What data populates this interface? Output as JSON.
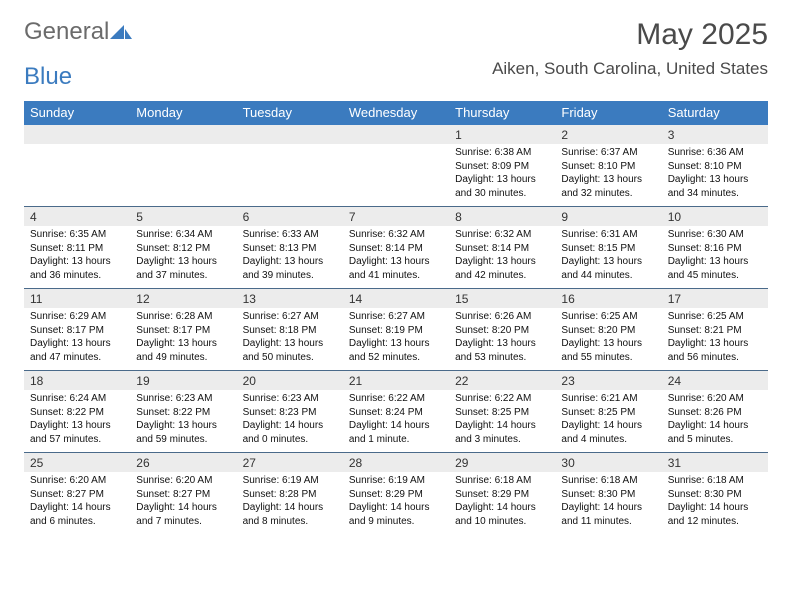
{
  "logo": {
    "part1": "General",
    "part2": "Blue"
  },
  "title": "May 2025",
  "location": "Aiken, South Carolina, United States",
  "accent_color": "#3b7bbf",
  "header_text_color": "#ffffff",
  "daynum_bg": "#ececec",
  "rule_color": "#4a6a8a",
  "weekdays": [
    "Sunday",
    "Monday",
    "Tuesday",
    "Wednesday",
    "Thursday",
    "Friday",
    "Saturday"
  ],
  "weeks": [
    [
      null,
      null,
      null,
      null,
      {
        "n": "1",
        "sunrise": "6:38 AM",
        "sunset": "8:09 PM",
        "dl": "13 hours and 30 minutes."
      },
      {
        "n": "2",
        "sunrise": "6:37 AM",
        "sunset": "8:10 PM",
        "dl": "13 hours and 32 minutes."
      },
      {
        "n": "3",
        "sunrise": "6:36 AM",
        "sunset": "8:10 PM",
        "dl": "13 hours and 34 minutes."
      }
    ],
    [
      {
        "n": "4",
        "sunrise": "6:35 AM",
        "sunset": "8:11 PM",
        "dl": "13 hours and 36 minutes."
      },
      {
        "n": "5",
        "sunrise": "6:34 AM",
        "sunset": "8:12 PM",
        "dl": "13 hours and 37 minutes."
      },
      {
        "n": "6",
        "sunrise": "6:33 AM",
        "sunset": "8:13 PM",
        "dl": "13 hours and 39 minutes."
      },
      {
        "n": "7",
        "sunrise": "6:32 AM",
        "sunset": "8:14 PM",
        "dl": "13 hours and 41 minutes."
      },
      {
        "n": "8",
        "sunrise": "6:32 AM",
        "sunset": "8:14 PM",
        "dl": "13 hours and 42 minutes."
      },
      {
        "n": "9",
        "sunrise": "6:31 AM",
        "sunset": "8:15 PM",
        "dl": "13 hours and 44 minutes."
      },
      {
        "n": "10",
        "sunrise": "6:30 AM",
        "sunset": "8:16 PM",
        "dl": "13 hours and 45 minutes."
      }
    ],
    [
      {
        "n": "11",
        "sunrise": "6:29 AM",
        "sunset": "8:17 PM",
        "dl": "13 hours and 47 minutes."
      },
      {
        "n": "12",
        "sunrise": "6:28 AM",
        "sunset": "8:17 PM",
        "dl": "13 hours and 49 minutes."
      },
      {
        "n": "13",
        "sunrise": "6:27 AM",
        "sunset": "8:18 PM",
        "dl": "13 hours and 50 minutes."
      },
      {
        "n": "14",
        "sunrise": "6:27 AM",
        "sunset": "8:19 PM",
        "dl": "13 hours and 52 minutes."
      },
      {
        "n": "15",
        "sunrise": "6:26 AM",
        "sunset": "8:20 PM",
        "dl": "13 hours and 53 minutes."
      },
      {
        "n": "16",
        "sunrise": "6:25 AM",
        "sunset": "8:20 PM",
        "dl": "13 hours and 55 minutes."
      },
      {
        "n": "17",
        "sunrise": "6:25 AM",
        "sunset": "8:21 PM",
        "dl": "13 hours and 56 minutes."
      }
    ],
    [
      {
        "n": "18",
        "sunrise": "6:24 AM",
        "sunset": "8:22 PM",
        "dl": "13 hours and 57 minutes."
      },
      {
        "n": "19",
        "sunrise": "6:23 AM",
        "sunset": "8:22 PM",
        "dl": "13 hours and 59 minutes."
      },
      {
        "n": "20",
        "sunrise": "6:23 AM",
        "sunset": "8:23 PM",
        "dl": "14 hours and 0 minutes."
      },
      {
        "n": "21",
        "sunrise": "6:22 AM",
        "sunset": "8:24 PM",
        "dl": "14 hours and 1 minute."
      },
      {
        "n": "22",
        "sunrise": "6:22 AM",
        "sunset": "8:25 PM",
        "dl": "14 hours and 3 minutes."
      },
      {
        "n": "23",
        "sunrise": "6:21 AM",
        "sunset": "8:25 PM",
        "dl": "14 hours and 4 minutes."
      },
      {
        "n": "24",
        "sunrise": "6:20 AM",
        "sunset": "8:26 PM",
        "dl": "14 hours and 5 minutes."
      }
    ],
    [
      {
        "n": "25",
        "sunrise": "6:20 AM",
        "sunset": "8:27 PM",
        "dl": "14 hours and 6 minutes."
      },
      {
        "n": "26",
        "sunrise": "6:20 AM",
        "sunset": "8:27 PM",
        "dl": "14 hours and 7 minutes."
      },
      {
        "n": "27",
        "sunrise": "6:19 AM",
        "sunset": "8:28 PM",
        "dl": "14 hours and 8 minutes."
      },
      {
        "n": "28",
        "sunrise": "6:19 AM",
        "sunset": "8:29 PM",
        "dl": "14 hours and 9 minutes."
      },
      {
        "n": "29",
        "sunrise": "6:18 AM",
        "sunset": "8:29 PM",
        "dl": "14 hours and 10 minutes."
      },
      {
        "n": "30",
        "sunrise": "6:18 AM",
        "sunset": "8:30 PM",
        "dl": "14 hours and 11 minutes."
      },
      {
        "n": "31",
        "sunrise": "6:18 AM",
        "sunset": "8:30 PM",
        "dl": "14 hours and 12 minutes."
      }
    ]
  ],
  "labels": {
    "sunrise": "Sunrise: ",
    "sunset": "Sunset: ",
    "daylight": "Daylight: "
  }
}
